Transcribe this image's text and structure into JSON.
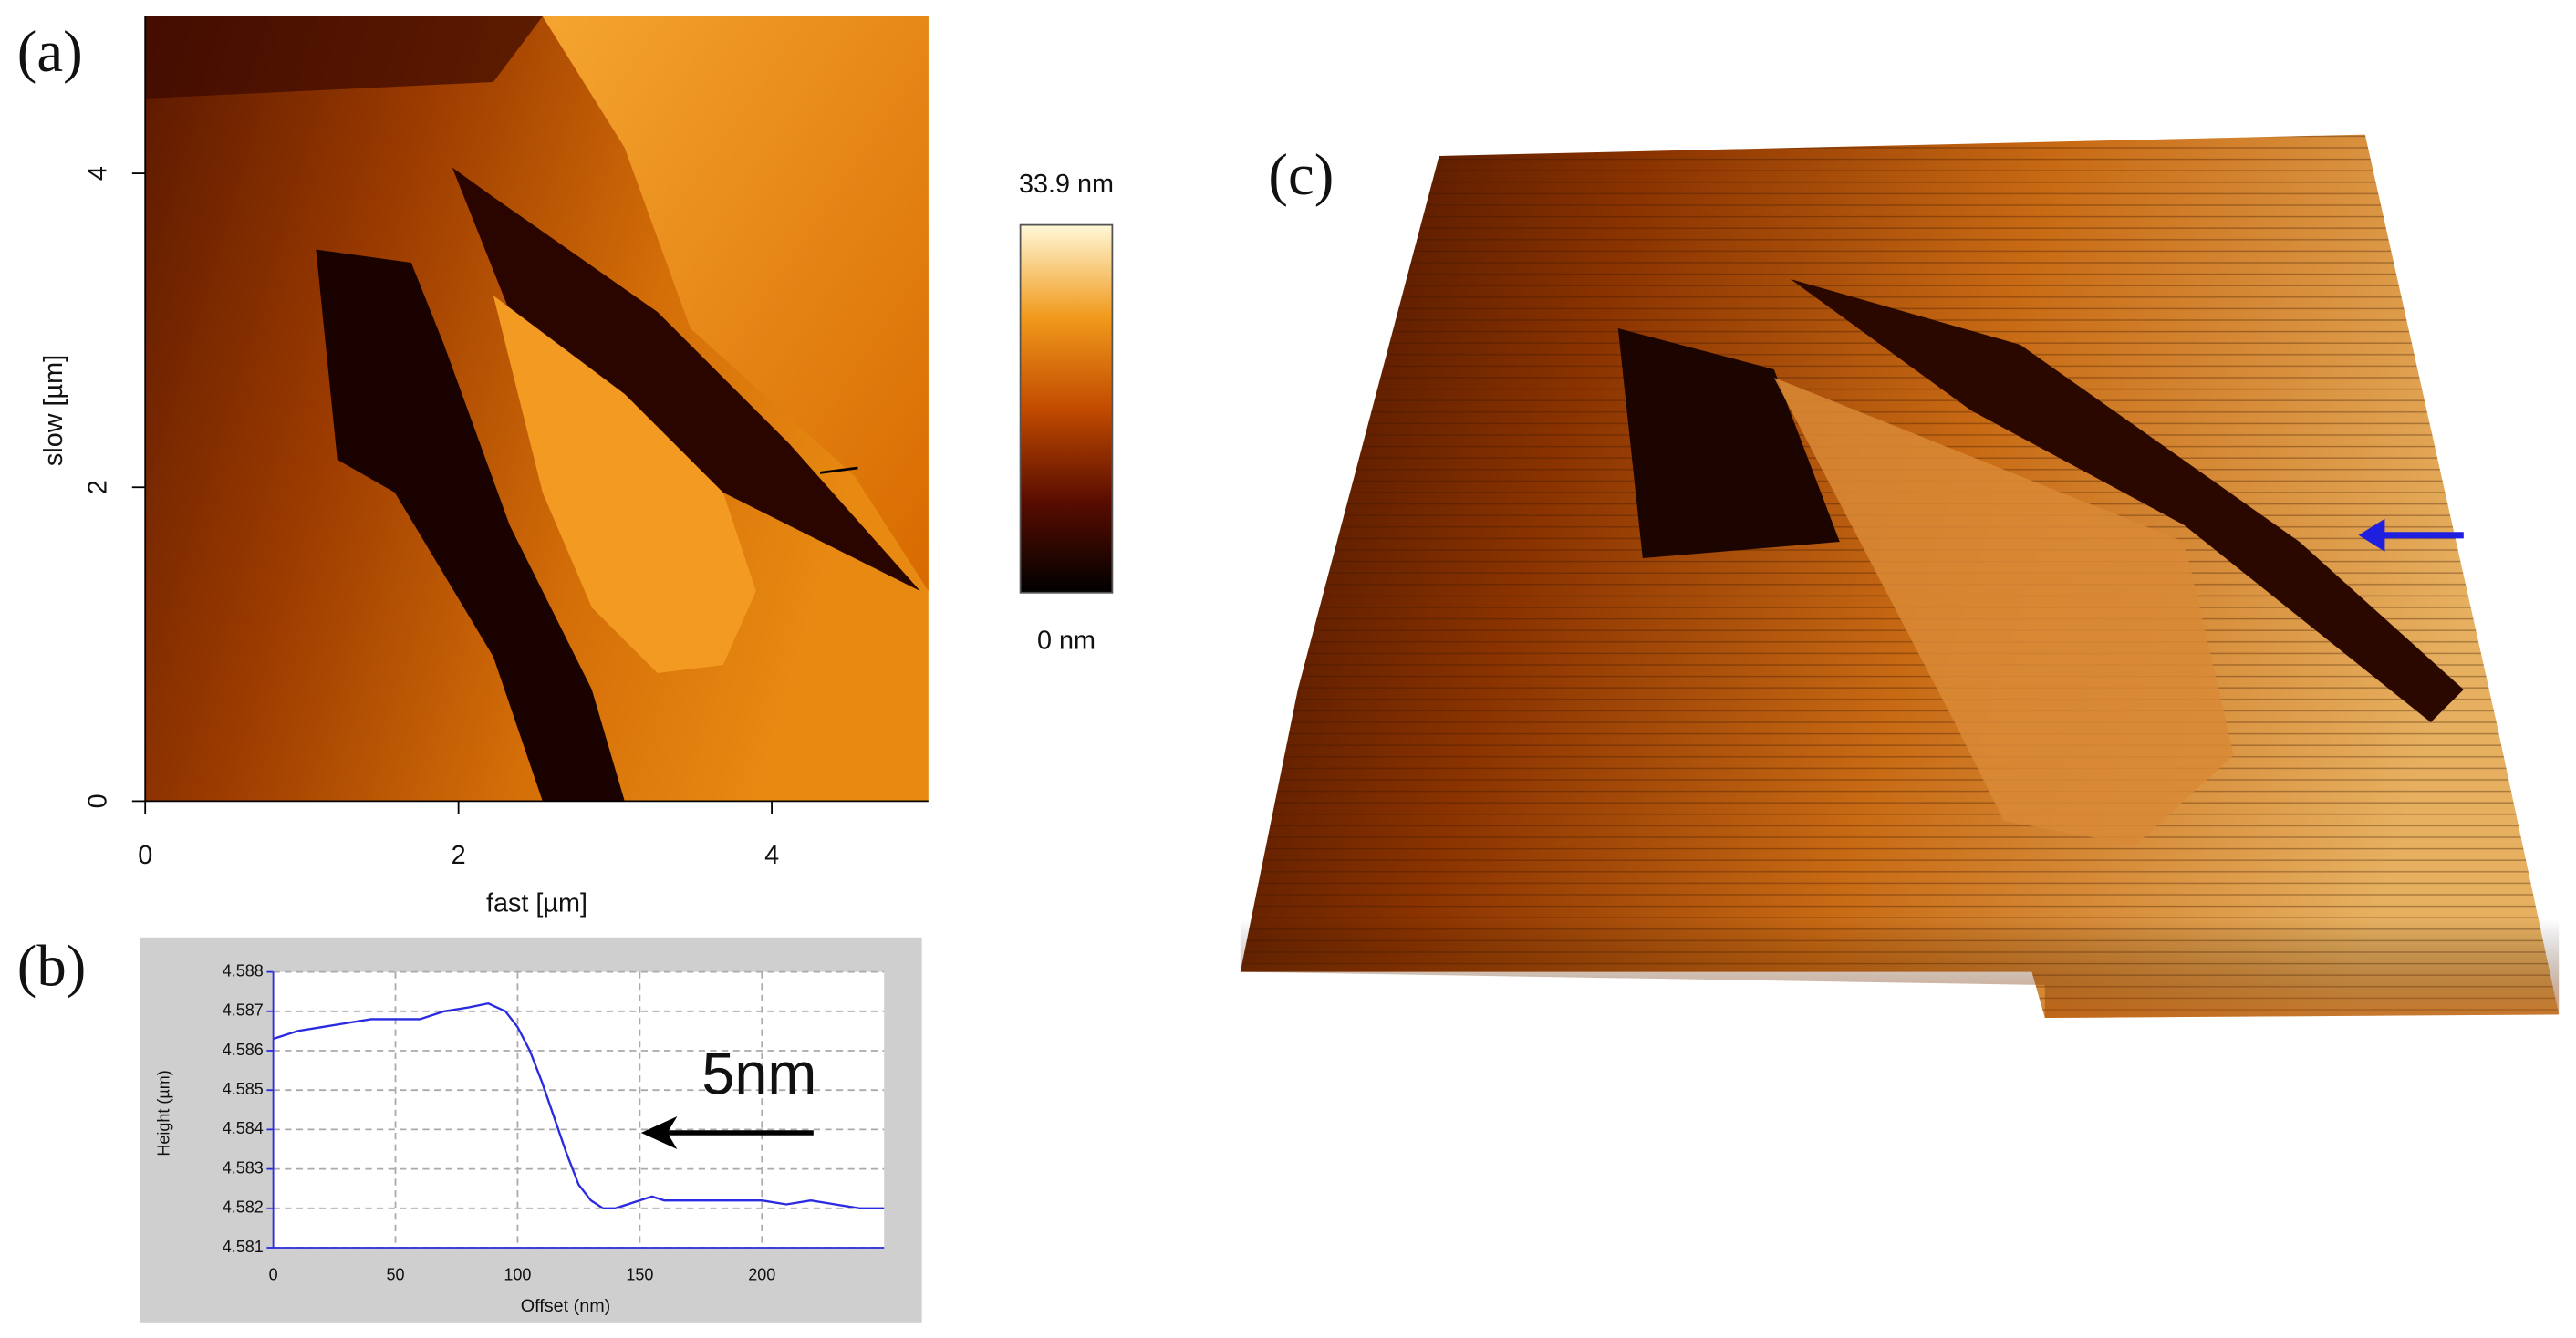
{
  "chart_data": [
    {
      "type": "image",
      "panel_label": "(a)",
      "x_label": "fast [µm]",
      "y_label": "slow [µm]",
      "xlim": [
        0,
        5
      ],
      "xticks": [
        0,
        2,
        4
      ],
      "ylim": [
        0,
        5
      ],
      "yticks": [
        0,
        2,
        4
      ],
      "clim": [
        0,
        33.9
      ],
      "cticks": [
        {
          "value": 33.9,
          "label": "33.9 nm"
        },
        {
          "value": 0,
          "label": "0 nm"
        }
      ],
      "colors": [
        "#000000",
        "#5a0d00",
        "#c24b00",
        "#f19a1c",
        "#fff8d8"
      ]
    },
    {
      "type": "line",
      "panel_label": "(b)",
      "x_label": "Offset (nm)",
      "y_label": "Height (µm)",
      "annotation": "5nm",
      "x": [
        0,
        10,
        20,
        30,
        40,
        50,
        60,
        70,
        80,
        88,
        95,
        100,
        105,
        110,
        115,
        120,
        125,
        130,
        135,
        140,
        150,
        155,
        160,
        170,
        180,
        190,
        200,
        210,
        220,
        230,
        240,
        250
      ],
      "series": [
        {
          "name": "Height",
          "color": "#2a2ae0",
          "values": [
            4.5863,
            4.5865,
            4.5866,
            4.5867,
            4.5868,
            4.5868,
            4.5868,
            4.587,
            4.5871,
            4.5872,
            4.587,
            4.5866,
            4.586,
            4.5852,
            4.5843,
            4.5834,
            4.5826,
            4.5822,
            4.582,
            4.582,
            4.5822,
            4.5823,
            4.5822,
            4.5822,
            4.5822,
            4.5822,
            4.5822,
            4.5821,
            4.5822,
            4.5821,
            4.582,
            4.582
          ]
        }
      ],
      "xlim": [
        0,
        250
      ],
      "xticks": [
        0,
        50,
        100,
        150,
        200
      ],
      "ylim": [
        4.581,
        4.588
      ],
      "yticks": [
        4.581,
        4.582,
        4.583,
        4.584,
        4.585,
        4.586,
        4.587,
        4.588
      ],
      "grid": true
    },
    {
      "type": "surface3d",
      "panel_label": "(c)"
    }
  ]
}
